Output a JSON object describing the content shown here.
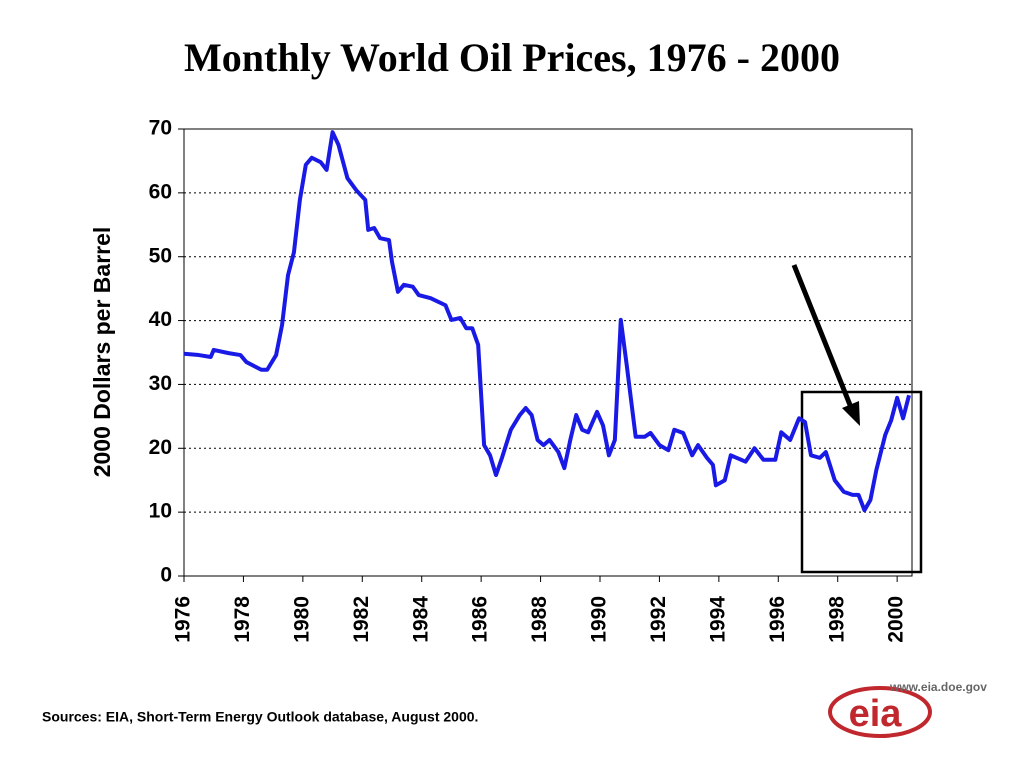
{
  "chart_data": {
    "type": "line",
    "title": "Monthly World Oil Prices, 1976 - 2000",
    "y_label": "2000 Dollars per Barrel",
    "color": "#1a1ae6",
    "x": [
      1976.0,
      1976.5,
      1976.9,
      1977.0,
      1977.5,
      1977.9,
      1978.1,
      1978.6,
      1978.8,
      1979.1,
      1979.3,
      1979.5,
      1979.7,
      1979.9,
      1980.1,
      1980.3,
      1980.6,
      1980.8,
      1981.0,
      1981.2,
      1981.5,
      1981.8,
      1982.1,
      1982.2,
      1982.4,
      1982.6,
      1982.9,
      1983.0,
      1983.2,
      1983.4,
      1983.7,
      1983.9,
      1984.3,
      1984.8,
      1985.0,
      1985.3,
      1985.5,
      1985.7,
      1985.9,
      1986.1,
      1986.3,
      1986.5,
      1986.7,
      1987.0,
      1987.3,
      1987.5,
      1987.7,
      1987.9,
      1988.1,
      1988.3,
      1988.6,
      1988.8,
      1989.0,
      1989.2,
      1989.4,
      1989.6,
      1989.9,
      1990.1,
      1990.3,
      1990.5,
      1990.7,
      1990.9,
      1991.2,
      1991.5,
      1991.7,
      1992.0,
      1992.3,
      1992.5,
      1992.8,
      1993.1,
      1993.3,
      1993.6,
      1993.8,
      1993.9,
      1994.2,
      1994.4,
      1994.9,
      1995.2,
      1995.5,
      1995.9,
      1996.1,
      1996.4,
      1996.7,
      1996.9,
      1997.1,
      1997.4,
      1997.6,
      1997.9,
      1998.2,
      1998.5,
      1998.7,
      1998.9,
      1999.1,
      1999.3,
      1999.6,
      1999.8,
      2000.0,
      2000.2,
      2000.4
    ],
    "values": [
      34.8,
      34.6,
      34.3,
      35.4,
      34.9,
      34.6,
      33.5,
      32.3,
      32.3,
      34.6,
      39.3,
      47.1,
      50.7,
      58.9,
      64.4,
      65.5,
      64.8,
      63.6,
      69.5,
      67.5,
      62.3,
      60.4,
      58.9,
      54.2,
      54.5,
      52.9,
      52.6,
      49.2,
      44.5,
      45.6,
      45.3,
      44.0,
      43.5,
      42.4,
      40.1,
      40.4,
      38.8,
      38.8,
      36.2,
      20.5,
      18.9,
      15.8,
      18.5,
      22.9,
      25.2,
      26.3,
      25.2,
      21.3,
      20.5,
      21.3,
      19.4,
      16.9,
      21.3,
      25.2,
      22.9,
      22.5,
      25.7,
      23.6,
      18.9,
      21.3,
      40.1,
      33.0,
      21.8,
      21.8,
      22.4,
      20.5,
      19.7,
      22.9,
      22.4,
      18.9,
      20.5,
      18.5,
      17.4,
      14.2,
      15.0,
      18.9,
      17.9,
      20.0,
      18.2,
      18.2,
      22.5,
      21.3,
      24.7,
      24.1,
      18.9,
      18.5,
      19.4,
      15.0,
      13.2,
      12.7,
      12.7,
      10.3,
      11.9,
      16.6,
      22.1,
      24.4,
      27.9,
      24.7,
      28.3
    ],
    "xlim": [
      1976,
      2000.5
    ],
    "xticks": [
      1976,
      1978,
      1980,
      1982,
      1984,
      1986,
      1988,
      1990,
      1992,
      1994,
      1996,
      1998,
      2000
    ],
    "ylim": [
      0,
      70
    ],
    "yticks": [
      0,
      10,
      20,
      30,
      40,
      50,
      60,
      70
    ],
    "grid": true
  },
  "source": "Sources: EIA, Short-Term Energy Outlook database, August 2000.",
  "logo": {
    "text": "eia",
    "url": "www.eia.doe.gov"
  }
}
